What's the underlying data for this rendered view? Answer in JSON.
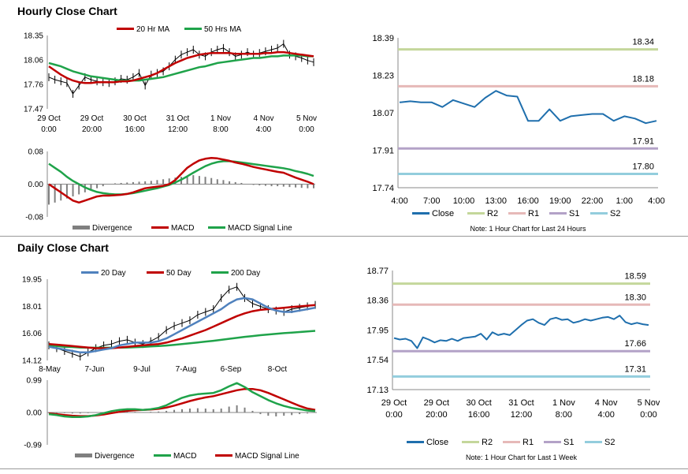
{
  "sections": {
    "hourly_title": "Hourly Close Chart",
    "daily_title": "Daily Close Chart"
  },
  "colors": {
    "price": "#000000",
    "red": "#c00000",
    "green": "#1fa34a",
    "blue": "#4f81bd",
    "close": "#1f6fad",
    "r2": "#c4d79b",
    "r1": "#e6b9b8",
    "s1": "#b3a2c7",
    "s2": "#93cddd",
    "divergence": "#7f7f7f"
  },
  "chart_data": [
    {
      "id": "hourly_price",
      "type": "line",
      "legend": [
        "20 Hr MA",
        "50 Hrs MA"
      ],
      "legend_colors": [
        "red",
        "green"
      ],
      "ylim": [
        17.47,
        18.35
      ],
      "yticks": [
        "18.35",
        "18.06",
        "17.76",
        "17.47"
      ],
      "xticks": [
        [
          "29 Oct",
          "0:00"
        ],
        [
          "29 Oct",
          "20:00"
        ],
        [
          "30 Oct",
          "16:00"
        ],
        [
          "31 Oct",
          "12:00"
        ],
        [
          "1 Nov",
          "8:00"
        ],
        [
          "4 Nov",
          "4:00"
        ],
        [
          "5 Nov",
          "0:00"
        ]
      ],
      "series": [
        {
          "name": "Close",
          "color": "price",
          "values": [
            17.85,
            17.82,
            17.8,
            17.78,
            17.65,
            17.75,
            17.85,
            17.82,
            17.8,
            17.79,
            17.78,
            17.8,
            17.83,
            17.82,
            17.85,
            17.9,
            17.75,
            17.88,
            17.9,
            17.92,
            17.98,
            18.06,
            18.12,
            18.15,
            18.18,
            18.12,
            18.1,
            18.15,
            18.18,
            18.2,
            18.15,
            18.1,
            18.12,
            18.15,
            18.12,
            18.14,
            18.16,
            18.18,
            18.2,
            18.25,
            18.12,
            18.1,
            18.08,
            18.05,
            18.03
          ]
        },
        {
          "name": "20 Hr MA",
          "color": "red",
          "values": [
            17.98,
            17.93,
            17.88,
            17.84,
            17.81,
            17.79,
            17.78,
            17.78,
            17.79,
            17.79,
            17.79,
            17.79,
            17.8,
            17.8,
            17.81,
            17.83,
            17.85,
            17.87,
            17.9,
            17.94,
            17.98,
            18.02,
            18.05,
            18.08,
            18.1,
            18.12,
            18.13,
            18.14,
            18.14,
            18.14,
            18.14,
            18.13,
            18.13,
            18.13,
            18.13,
            18.13,
            18.14,
            18.14,
            18.15,
            18.15,
            18.14,
            18.13,
            18.12,
            18.11,
            18.1
          ]
        },
        {
          "name": "50 Hrs MA",
          "color": "green",
          "values": [
            18.02,
            18.0,
            17.98,
            17.95,
            17.92,
            17.9,
            17.88,
            17.86,
            17.85,
            17.84,
            17.83,
            17.82,
            17.81,
            17.81,
            17.81,
            17.81,
            17.82,
            17.83,
            17.84,
            17.85,
            17.87,
            17.89,
            17.91,
            17.93,
            17.95,
            17.97,
            17.98,
            18.0,
            18.02,
            18.03,
            18.04,
            18.05,
            18.06,
            18.07,
            18.08,
            18.08,
            18.09,
            18.1,
            18.1,
            18.11,
            18.11,
            18.11,
            18.11,
            18.1,
            18.1
          ]
        }
      ]
    },
    {
      "id": "hourly_macd",
      "type": "bar",
      "legend": [
        "Divergence",
        "MACD",
        "MACD Signal Line"
      ],
      "legend_colors": [
        "divergence",
        "red",
        "green"
      ],
      "ylim": [
        -0.08,
        0.08
      ],
      "yticks": [
        "0.08",
        "0.00",
        "-0.08"
      ],
      "series": [
        {
          "name": "Divergence",
          "color": "divergence",
          "values": [
            -0.05,
            -0.045,
            -0.04,
            -0.035,
            -0.03,
            -0.025,
            -0.02,
            -0.015,
            -0.01,
            -0.005,
            0.0,
            0.002,
            0.003,
            0.004,
            0.005,
            0.006,
            0.007,
            0.008,
            0.01,
            0.012,
            0.014,
            0.016,
            0.018,
            0.02,
            0.022,
            0.02,
            0.018,
            0.015,
            0.012,
            0.01,
            0.007,
            0.005,
            0.003,
            0.0,
            -0.002,
            -0.003,
            -0.004,
            -0.005,
            -0.005,
            -0.006,
            -0.007,
            -0.008,
            -0.009,
            -0.01,
            -0.01
          ]
        },
        {
          "name": "MACD",
          "color": "red",
          "values": [
            0.0,
            -0.01,
            -0.02,
            -0.03,
            -0.04,
            -0.045,
            -0.04,
            -0.035,
            -0.03,
            -0.028,
            -0.028,
            -0.027,
            -0.026,
            -0.024,
            -0.02,
            -0.015,
            -0.01,
            -0.008,
            -0.006,
            -0.004,
            0.0,
            0.01,
            0.025,
            0.04,
            0.05,
            0.058,
            0.062,
            0.064,
            0.063,
            0.06,
            0.057,
            0.053,
            0.05,
            0.046,
            0.042,
            0.039,
            0.036,
            0.033,
            0.03,
            0.028,
            0.022,
            0.016,
            0.011,
            0.006,
            0.0
          ]
        },
        {
          "name": "MACD Signal Line",
          "color": "green",
          "values": [
            0.05,
            0.04,
            0.03,
            0.018,
            0.008,
            0.0,
            -0.008,
            -0.014,
            -0.019,
            -0.022,
            -0.024,
            -0.025,
            -0.025,
            -0.024,
            -0.022,
            -0.019,
            -0.016,
            -0.013,
            -0.01,
            -0.006,
            -0.002,
            0.004,
            0.011,
            0.019,
            0.028,
            0.036,
            0.044,
            0.05,
            0.054,
            0.056,
            0.056,
            0.055,
            0.053,
            0.051,
            0.049,
            0.047,
            0.045,
            0.043,
            0.041,
            0.039,
            0.036,
            0.032,
            0.029,
            0.025,
            0.02
          ]
        }
      ]
    },
    {
      "id": "hourly_pivots",
      "type": "line",
      "legend": [
        "Close",
        "R2",
        "R1",
        "S1",
        "S2"
      ],
      "legend_colors": [
        "close",
        "r2",
        "r1",
        "s1",
        "s2"
      ],
      "ylim": [
        17.74,
        18.39
      ],
      "yticks": [
        "18.39",
        "18.23",
        "18.07",
        "17.91",
        "17.74"
      ],
      "xticks": [
        "4:00",
        "7:00",
        "10:00",
        "13:00",
        "16:00",
        "19:00",
        "22:00",
        "1:00",
        "4:00"
      ],
      "levels": [
        {
          "name": "R2",
          "value": 18.34,
          "label": "18.34",
          "color": "r2"
        },
        {
          "name": "R1",
          "value": 18.18,
          "label": "18.18",
          "color": "r1"
        },
        {
          "name": "S1",
          "value": 17.91,
          "label": "17.91",
          "color": "s1"
        },
        {
          "name": "S2",
          "value": 17.8,
          "label": "17.80",
          "color": "s2"
        }
      ],
      "series": [
        {
          "name": "Close",
          "color": "close",
          "values": [
            18.11,
            18.115,
            18.11,
            18.11,
            18.09,
            18.12,
            18.105,
            18.09,
            18.13,
            18.16,
            18.14,
            18.135,
            18.03,
            18.03,
            18.08,
            18.03,
            18.05,
            18.055,
            18.06,
            18.06,
            18.03,
            18.05,
            18.04,
            18.02,
            18.03
          ]
        }
      ],
      "note": "Note: 1 Hour Chart for Last 24 Hours"
    },
    {
      "id": "daily_price",
      "type": "line",
      "legend": [
        "20 Day",
        "50 Day",
        "200 Day"
      ],
      "legend_colors": [
        "blue",
        "red",
        "green"
      ],
      "ylim": [
        14.12,
        19.95
      ],
      "yticks": [
        "19.95",
        "18.01",
        "16.06",
        "14.12"
      ],
      "xticks": [
        "8-May",
        "7-Jun",
        "9-Jul",
        "7-Aug",
        "6-Sep",
        "8-Oct"
      ],
      "series": [
        {
          "name": "Close",
          "color": "price",
          "values": [
            15.2,
            15.0,
            14.8,
            14.6,
            14.4,
            14.7,
            15.0,
            15.2,
            15.3,
            15.5,
            15.6,
            15.4,
            15.3,
            15.5,
            15.8,
            16.3,
            16.6,
            16.8,
            17.0,
            17.4,
            17.6,
            17.8,
            18.6,
            19.2,
            19.4,
            18.6,
            18.2,
            18.0,
            17.8,
            17.7,
            17.6,
            17.8,
            17.9,
            18.0,
            18.1
          ]
        },
        {
          "name": "20 Day",
          "color": "blue",
          "values": [
            15.1,
            15.0,
            14.9,
            14.8,
            14.7,
            14.7,
            14.8,
            14.9,
            15.0,
            15.2,
            15.3,
            15.4,
            15.4,
            15.4,
            15.5,
            15.7,
            16.0,
            16.3,
            16.6,
            16.9,
            17.2,
            17.5,
            17.8,
            18.2,
            18.5,
            18.6,
            18.5,
            18.2,
            17.9,
            17.7,
            17.6,
            17.6,
            17.7,
            17.8,
            17.9
          ]
        },
        {
          "name": "50 Day",
          "color": "red",
          "values": [
            15.3,
            15.25,
            15.2,
            15.15,
            15.1,
            15.05,
            15.0,
            15.0,
            15.0,
            15.05,
            15.1,
            15.15,
            15.2,
            15.25,
            15.3,
            15.4,
            15.55,
            15.7,
            15.9,
            16.1,
            16.3,
            16.55,
            16.8,
            17.05,
            17.3,
            17.5,
            17.65,
            17.75,
            17.8,
            17.85,
            17.9,
            17.95,
            18.0,
            18.05,
            18.1
          ]
        },
        {
          "name": "200 Day",
          "color": "green",
          "values": [
            15.2,
            15.15,
            15.1,
            15.08,
            15.05,
            15.04,
            15.03,
            15.03,
            15.03,
            15.04,
            15.05,
            15.07,
            15.09,
            15.12,
            15.15,
            15.19,
            15.24,
            15.29,
            15.35,
            15.41,
            15.47,
            15.53,
            15.6,
            15.67,
            15.74,
            15.81,
            15.87,
            15.93,
            15.98,
            16.03,
            16.08,
            16.12,
            16.16,
            16.2,
            16.24
          ]
        }
      ]
    },
    {
      "id": "daily_macd",
      "type": "bar",
      "legend": [
        "Divergence",
        "MACD",
        "MACD Signal Line"
      ],
      "legend_colors": [
        "divergence",
        "green",
        "red"
      ],
      "ylim": [
        -0.99,
        0.99
      ],
      "yticks": [
        "0.99",
        "0.00",
        "-0.99"
      ],
      "series": [
        {
          "name": "Divergence",
          "color": "divergence",
          "values": [
            -0.02,
            -0.02,
            -0.02,
            -0.03,
            -0.03,
            -0.02,
            -0.01,
            0.0,
            0.02,
            0.03,
            0.03,
            0.02,
            0.01,
            0.02,
            0.03,
            0.05,
            0.08,
            0.1,
            0.12,
            0.13,
            0.12,
            0.1,
            0.12,
            0.18,
            0.22,
            0.15,
            0.05,
            -0.05,
            -0.1,
            -0.12,
            -0.1,
            -0.08,
            -0.05,
            -0.03,
            -0.01
          ]
        },
        {
          "name": "MACD",
          "color": "green",
          "values": [
            -0.05,
            -0.08,
            -0.12,
            -0.14,
            -0.14,
            -0.12,
            -0.08,
            -0.02,
            0.04,
            0.08,
            0.1,
            0.1,
            0.08,
            0.1,
            0.14,
            0.22,
            0.34,
            0.45,
            0.52,
            0.56,
            0.58,
            0.6,
            0.68,
            0.8,
            0.9,
            0.78,
            0.62,
            0.5,
            0.38,
            0.28,
            0.2,
            0.14,
            0.1,
            0.06,
            0.04
          ]
        },
        {
          "name": "MACD Signal Line",
          "color": "red",
          "values": [
            -0.03,
            -0.05,
            -0.08,
            -0.1,
            -0.11,
            -0.11,
            -0.09,
            -0.06,
            -0.02,
            0.02,
            0.05,
            0.07,
            0.08,
            0.09,
            0.11,
            0.15,
            0.21,
            0.28,
            0.35,
            0.41,
            0.46,
            0.5,
            0.56,
            0.62,
            0.68,
            0.72,
            0.72,
            0.68,
            0.6,
            0.5,
            0.4,
            0.3,
            0.2,
            0.12,
            0.08
          ]
        }
      ]
    },
    {
      "id": "daily_pivots",
      "type": "line",
      "legend": [
        "Close",
        "R2",
        "R1",
        "S1",
        "S2"
      ],
      "legend_colors": [
        "close",
        "r2",
        "r1",
        "s1",
        "s2"
      ],
      "ylim": [
        17.13,
        18.77
      ],
      "yticks": [
        "18.77",
        "18.36",
        "17.95",
        "17.54",
        "17.13"
      ],
      "xticks": [
        [
          "29 Oct",
          "0:00"
        ],
        [
          "29 Oct",
          "20:00"
        ],
        [
          "30 Oct",
          "16:00"
        ],
        [
          "31 Oct",
          "12:00"
        ],
        [
          "1 Nov",
          "8:00"
        ],
        [
          "4 Nov",
          "4:00"
        ],
        [
          "5 Nov",
          "0:00"
        ]
      ],
      "levels": [
        {
          "name": "R2",
          "value": 18.59,
          "label": "18.59",
          "color": "r2"
        },
        {
          "name": "R1",
          "value": 18.3,
          "label": "18.30",
          "color": "r1"
        },
        {
          "name": "S1",
          "value": 17.66,
          "label": "17.66",
          "color": "s1"
        },
        {
          "name": "S2",
          "value": 17.31,
          "label": "17.31",
          "color": "s2"
        }
      ],
      "series": [
        {
          "name": "Close",
          "color": "close",
          "values": [
            17.84,
            17.82,
            17.83,
            17.8,
            17.7,
            17.85,
            17.82,
            17.78,
            17.81,
            17.8,
            17.83,
            17.8,
            17.84,
            17.85,
            17.86,
            17.9,
            17.82,
            17.92,
            17.88,
            17.9,
            17.88,
            17.95,
            18.02,
            18.08,
            18.1,
            18.05,
            18.02,
            18.1,
            18.12,
            18.09,
            18.1,
            18.05,
            18.07,
            18.1,
            18.08,
            18.1,
            18.12,
            18.13,
            18.1,
            18.15,
            18.06,
            18.03,
            18.05,
            18.03,
            18.02
          ]
        }
      ],
      "note": "Note: 1 Hour Chart for Last 1 Week"
    }
  ]
}
